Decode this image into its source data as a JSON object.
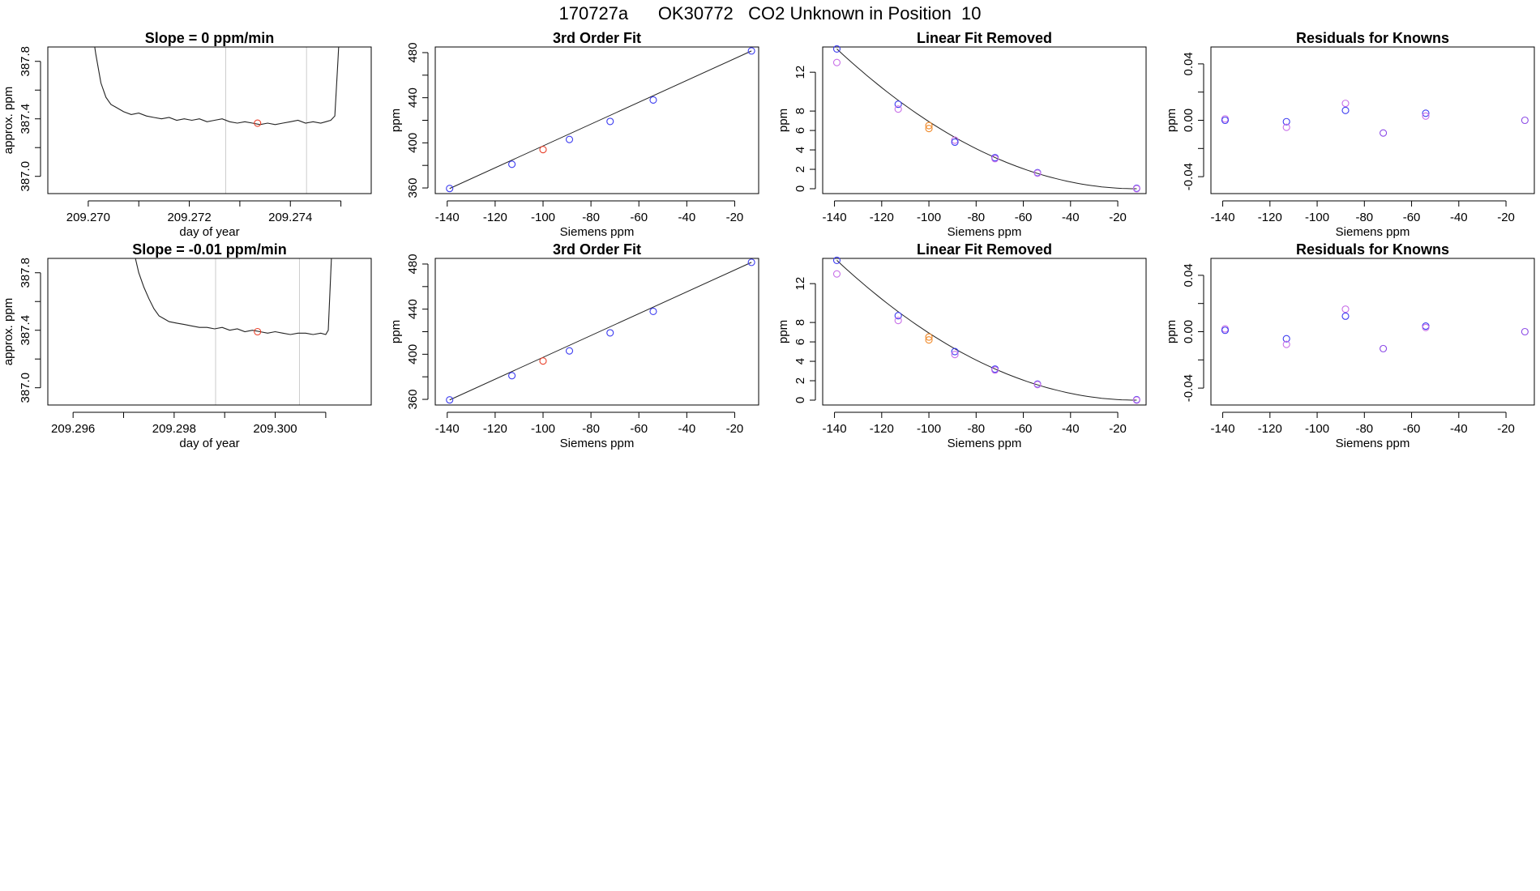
{
  "header": {
    "title": "170727a      OK30772   CO2 Unknown in Position  10"
  },
  "colors": {
    "blue": "#3b3bf0",
    "violet": "#c86fe8",
    "red": "#e8402a",
    "orange": "#f08a2a",
    "purpleMix": "#8a48e6",
    "line": "#222222",
    "grid": "#cccccc"
  },
  "chart_data": [
    {
      "id": "trace1",
      "type": "line",
      "title": "Slope =  0  ppm/min",
      "xlabel": "day of year",
      "ylabel": "approx. ppm",
      "xlim": [
        209.2692,
        209.2756
      ],
      "ylim": [
        386.88,
        387.9
      ],
      "xticks": [
        209.27,
        209.271,
        209.272,
        209.273,
        209.274,
        209.275
      ],
      "xtick_labels": [
        "209.270",
        "",
        "209.272",
        "",
        "209.274",
        ""
      ],
      "yticks": [
        387.0,
        387.2,
        387.4,
        387.6,
        387.8
      ],
      "ytick_labels": [
        "387.0",
        "",
        "387.4",
        "",
        "387.8"
      ],
      "vlines": [
        209.27272,
        209.27432
      ],
      "series": [
        {
          "name": "trace",
          "points": [
            [
              209.27,
              388.2
            ],
            [
              209.27015,
              387.85
            ],
            [
              209.27025,
              387.65
            ],
            [
              209.27035,
              387.55
            ],
            [
              209.27045,
              387.5
            ],
            [
              209.27055,
              387.48
            ],
            [
              209.2707,
              387.45
            ],
            [
              209.27085,
              387.43
            ],
            [
              209.271,
              387.44
            ],
            [
              209.27115,
              387.42
            ],
            [
              209.2713,
              387.41
            ],
            [
              209.27145,
              387.4
            ],
            [
              209.2716,
              387.41
            ],
            [
              209.27175,
              387.39
            ],
            [
              209.2719,
              387.4
            ],
            [
              209.27205,
              387.39
            ],
            [
              209.2722,
              387.4
            ],
            [
              209.27235,
              387.38
            ],
            [
              209.2725,
              387.39
            ],
            [
              209.27265,
              387.4
            ],
            [
              209.2728,
              387.38
            ],
            [
              209.27295,
              387.37
            ],
            [
              209.2731,
              387.38
            ],
            [
              209.27325,
              387.37
            ],
            [
              209.2734,
              387.36
            ],
            [
              209.27355,
              387.37
            ],
            [
              209.2737,
              387.36
            ],
            [
              209.27385,
              387.37
            ],
            [
              209.274,
              387.38
            ],
            [
              209.27415,
              387.39
            ],
            [
              209.2743,
              387.37
            ],
            [
              209.27445,
              387.38
            ],
            [
              209.2746,
              387.37
            ],
            [
              209.2747,
              387.38
            ],
            [
              209.2748,
              387.39
            ],
            [
              209.27488,
              387.42
            ],
            [
              209.27494,
              387.8
            ],
            [
              209.275,
              388.2
            ]
          ]
        }
      ],
      "marker": {
        "x": 209.27335,
        "y": 387.37,
        "color": "red"
      }
    },
    {
      "id": "fit1",
      "type": "scatter",
      "title": "3rd Order Fit",
      "xlabel": "Siemens ppm",
      "ylabel": "ppm",
      "xlim": [
        -145,
        -10
      ],
      "ylim": [
        355,
        485
      ],
      "xticks": [
        -140,
        -120,
        -100,
        -80,
        -60,
        -40,
        -20
      ],
      "xtick_labels": [
        "-140",
        "-120",
        "-100",
        "-80",
        "-60",
        "-40",
        "-20"
      ],
      "yticks": [
        360,
        380,
        400,
        420,
        440,
        460,
        480
      ],
      "ytick_labels": [
        "360",
        "",
        "400",
        "",
        "440",
        "",
        "480"
      ],
      "fit_line": [
        [
          -139,
          359.5
        ],
        [
          -13,
          481.5
        ]
      ],
      "points": [
        {
          "x": -139,
          "y": 359.5,
          "color": "blue"
        },
        {
          "x": -113,
          "y": 381,
          "color": "blue"
        },
        {
          "x": -100,
          "y": 394,
          "color": "red"
        },
        {
          "x": -89,
          "y": 403,
          "color": "blue"
        },
        {
          "x": -72,
          "y": 419,
          "color": "blue"
        },
        {
          "x": -54,
          "y": 438,
          "color": "blue"
        },
        {
          "x": -13,
          "y": 481.5,
          "color": "blue"
        }
      ]
    },
    {
      "id": "lin1",
      "type": "scatter",
      "title": "Linear Fit Removed",
      "xlabel": "Siemens ppm",
      "ylabel": "ppm",
      "xlim": [
        -145,
        -8
      ],
      "ylim": [
        -0.5,
        14.6
      ],
      "xticks": [
        -140,
        -120,
        -100,
        -80,
        -60,
        -40,
        -20
      ],
      "xtick_labels": [
        "-140",
        "-120",
        "-100",
        "-80",
        "-60",
        "-40",
        "-20"
      ],
      "yticks": [
        0,
        2,
        4,
        6,
        8,
        12
      ],
      "ytick_labels": [
        "0",
        "2",
        "4",
        "6",
        "8",
        "12"
      ],
      "curve": {
        "x0": -139,
        "x1": -12,
        "a": 0.000893,
        "vertex": -12
      },
      "points": [
        {
          "x": -139,
          "y": 14.4,
          "color": "blue"
        },
        {
          "x": -139,
          "y": 13.0,
          "color": "violet"
        },
        {
          "x": -113,
          "y": 8.7,
          "color": "blue"
        },
        {
          "x": -113,
          "y": 8.2,
          "color": "violet"
        },
        {
          "x": -100,
          "y": 6.5,
          "color": "orange"
        },
        {
          "x": -100,
          "y": 6.2,
          "color": "orange"
        },
        {
          "x": -89,
          "y": 5.0,
          "color": "violet"
        },
        {
          "x": -89,
          "y": 4.8,
          "color": "blue"
        },
        {
          "x": -72,
          "y": 3.2,
          "color": "blue"
        },
        {
          "x": -72,
          "y": 3.1,
          "color": "violet"
        },
        {
          "x": -54,
          "y": 1.65,
          "color": "blue"
        },
        {
          "x": -54,
          "y": 1.6,
          "color": "violet"
        },
        {
          "x": -12,
          "y": 0.05,
          "color": "blue"
        },
        {
          "x": -12,
          "y": 0.0,
          "color": "violet"
        }
      ]
    },
    {
      "id": "res1",
      "type": "scatter",
      "title": "Residuals for Knowns",
      "xlabel": "Siemens ppm",
      "ylabel": "ppm",
      "xlim": [
        -145,
        -8
      ],
      "ylim": [
        -0.052,
        0.052
      ],
      "xticks": [
        -140,
        -120,
        -100,
        -80,
        -60,
        -40,
        -20
      ],
      "xtick_labels": [
        "-140",
        "-120",
        "-100",
        "-80",
        "-60",
        "-40",
        "-20"
      ],
      "yticks": [
        -0.04,
        -0.02,
        0.0,
        0.02,
        0.04
      ],
      "ytick_labels": [
        "-0.04",
        "",
        "0.00",
        "",
        "0.04"
      ],
      "points": [
        {
          "x": -139,
          "y": 0.001,
          "color": "violet"
        },
        {
          "x": -139,
          "y": 0.0,
          "color": "blue"
        },
        {
          "x": -113,
          "y": -0.001,
          "color": "blue"
        },
        {
          "x": -113,
          "y": -0.005,
          "color": "violet"
        },
        {
          "x": -88,
          "y": 0.012,
          "color": "violet"
        },
        {
          "x": -88,
          "y": 0.007,
          "color": "blue"
        },
        {
          "x": -72,
          "y": -0.009,
          "color": "purpleMix"
        },
        {
          "x": -54,
          "y": 0.005,
          "color": "blue"
        },
        {
          "x": -54,
          "y": 0.003,
          "color": "violet"
        },
        {
          "x": -12,
          "y": 0.0,
          "color": "purpleMix"
        }
      ]
    },
    {
      "id": "trace2",
      "type": "line",
      "title": "Slope =  -0.01  ppm/min",
      "xlabel": "day of year",
      "ylabel": "approx. ppm",
      "xlim": [
        209.2955,
        209.3019
      ],
      "ylim": [
        386.88,
        387.9
      ],
      "xticks": [
        209.296,
        209.297,
        209.298,
        209.299,
        209.3,
        209.301
      ],
      "xtick_labels": [
        "209.296",
        "",
        "209.298",
        "",
        "209.300",
        ""
      ],
      "yticks": [
        387.0,
        387.2,
        387.4,
        387.6,
        387.8
      ],
      "ytick_labels": [
        "387.0",
        "",
        "387.4",
        "",
        "387.8"
      ],
      "vlines": [
        209.29882,
        209.30048
      ],
      "series": [
        {
          "name": "trace",
          "points": [
            [
              209.2971,
              388.2
            ],
            [
              209.2972,
              387.95
            ],
            [
              209.2973,
              387.8
            ],
            [
              209.2974,
              387.7
            ],
            [
              209.2975,
              387.62
            ],
            [
              209.2976,
              387.55
            ],
            [
              209.2977,
              387.5
            ],
            [
              209.2978,
              387.48
            ],
            [
              209.2979,
              387.46
            ],
            [
              209.29805,
              387.45
            ],
            [
              209.2982,
              387.44
            ],
            [
              209.29835,
              387.43
            ],
            [
              209.2985,
              387.42
            ],
            [
              209.29865,
              387.42
            ],
            [
              209.2988,
              387.41
            ],
            [
              209.29895,
              387.42
            ],
            [
              209.2991,
              387.4
            ],
            [
              209.29925,
              387.41
            ],
            [
              209.2994,
              387.39
            ],
            [
              209.29955,
              387.4
            ],
            [
              209.2997,
              387.39
            ],
            [
              209.29985,
              387.38
            ],
            [
              209.3,
              387.39
            ],
            [
              209.30015,
              387.38
            ],
            [
              209.3003,
              387.37
            ],
            [
              209.30045,
              387.38
            ],
            [
              209.3006,
              387.38
            ],
            [
              209.30075,
              387.37
            ],
            [
              209.3009,
              387.38
            ],
            [
              209.301,
              387.37
            ],
            [
              209.30105,
              387.4
            ],
            [
              209.3011,
              387.8
            ],
            [
              209.30115,
              388.2
            ]
          ]
        }
      ],
      "marker": {
        "x": 209.29965,
        "y": 387.39,
        "color": "red"
      }
    },
    {
      "id": "fit2",
      "type": "scatter",
      "title": "3rd Order Fit",
      "xlabel": "Siemens ppm",
      "ylabel": "ppm",
      "xlim": [
        -145,
        -10
      ],
      "ylim": [
        355,
        485
      ],
      "xticks": [
        -140,
        -120,
        -100,
        -80,
        -60,
        -40,
        -20
      ],
      "xtick_labels": [
        "-140",
        "-120",
        "-100",
        "-80",
        "-60",
        "-40",
        "-20"
      ],
      "yticks": [
        360,
        380,
        400,
        420,
        440,
        460,
        480
      ],
      "ytick_labels": [
        "360",
        "",
        "400",
        "",
        "440",
        "",
        "480"
      ],
      "fit_line": [
        [
          -139,
          359.5
        ],
        [
          -13,
          481.5
        ]
      ],
      "points": [
        {
          "x": -139,
          "y": 359.5,
          "color": "blue"
        },
        {
          "x": -113,
          "y": 381,
          "color": "blue"
        },
        {
          "x": -100,
          "y": 394,
          "color": "red"
        },
        {
          "x": -89,
          "y": 403,
          "color": "blue"
        },
        {
          "x": -72,
          "y": 419,
          "color": "blue"
        },
        {
          "x": -54,
          "y": 438,
          "color": "blue"
        },
        {
          "x": -13,
          "y": 481.5,
          "color": "blue"
        }
      ]
    },
    {
      "id": "lin2",
      "type": "scatter",
      "title": "Linear Fit Removed",
      "xlabel": "Siemens ppm",
      "ylabel": "ppm",
      "xlim": [
        -145,
        -8
      ],
      "ylim": [
        -0.5,
        14.6
      ],
      "xticks": [
        -140,
        -120,
        -100,
        -80,
        -60,
        -40,
        -20
      ],
      "xtick_labels": [
        "-140",
        "-120",
        "-100",
        "-80",
        "-60",
        "-40",
        "-20"
      ],
      "yticks": [
        0,
        2,
        4,
        6,
        8,
        12
      ],
      "ytick_labels": [
        "0",
        "2",
        "4",
        "6",
        "8",
        "12"
      ],
      "curve": {
        "x0": -139,
        "x1": -12,
        "a": 0.000893,
        "vertex": -12
      },
      "points": [
        {
          "x": -139,
          "y": 14.4,
          "color": "blue"
        },
        {
          "x": -139,
          "y": 13.0,
          "color": "violet"
        },
        {
          "x": -113,
          "y": 8.7,
          "color": "blue"
        },
        {
          "x": -113,
          "y": 8.2,
          "color": "violet"
        },
        {
          "x": -100,
          "y": 6.5,
          "color": "orange"
        },
        {
          "x": -100,
          "y": 6.2,
          "color": "orange"
        },
        {
          "x": -89,
          "y": 5.0,
          "color": "blue"
        },
        {
          "x": -89,
          "y": 4.7,
          "color": "violet"
        },
        {
          "x": -72,
          "y": 3.2,
          "color": "blue"
        },
        {
          "x": -72,
          "y": 3.1,
          "color": "violet"
        },
        {
          "x": -54,
          "y": 1.65,
          "color": "blue"
        },
        {
          "x": -54,
          "y": 1.6,
          "color": "violet"
        },
        {
          "x": -12,
          "y": 0.05,
          "color": "blue"
        },
        {
          "x": -12,
          "y": 0.0,
          "color": "violet"
        }
      ]
    },
    {
      "id": "res2",
      "type": "scatter",
      "title": "Residuals for Knowns",
      "xlabel": "Siemens ppm",
      "ylabel": "ppm",
      "xlim": [
        -145,
        -8
      ],
      "ylim": [
        -0.052,
        0.052
      ],
      "xticks": [
        -140,
        -120,
        -100,
        -80,
        -60,
        -40,
        -20
      ],
      "xtick_labels": [
        "-140",
        "-120",
        "-100",
        "-80",
        "-60",
        "-40",
        "-20"
      ],
      "yticks": [
        -0.04,
        -0.02,
        0.0,
        0.02,
        0.04
      ],
      "ytick_labels": [
        "-0.04",
        "",
        "0.00",
        "",
        "0.04"
      ],
      "points": [
        {
          "x": -139,
          "y": 0.002,
          "color": "violet"
        },
        {
          "x": -139,
          "y": 0.001,
          "color": "blue"
        },
        {
          "x": -113,
          "y": -0.005,
          "color": "blue"
        },
        {
          "x": -113,
          "y": -0.009,
          "color": "violet"
        },
        {
          "x": -88,
          "y": 0.016,
          "color": "violet"
        },
        {
          "x": -88,
          "y": 0.011,
          "color": "blue"
        },
        {
          "x": -72,
          "y": -0.012,
          "color": "purpleMix"
        },
        {
          "x": -54,
          "y": 0.004,
          "color": "blue"
        },
        {
          "x": -54,
          "y": 0.003,
          "color": "violet"
        },
        {
          "x": -12,
          "y": 0.0,
          "color": "purpleMix"
        }
      ]
    }
  ]
}
